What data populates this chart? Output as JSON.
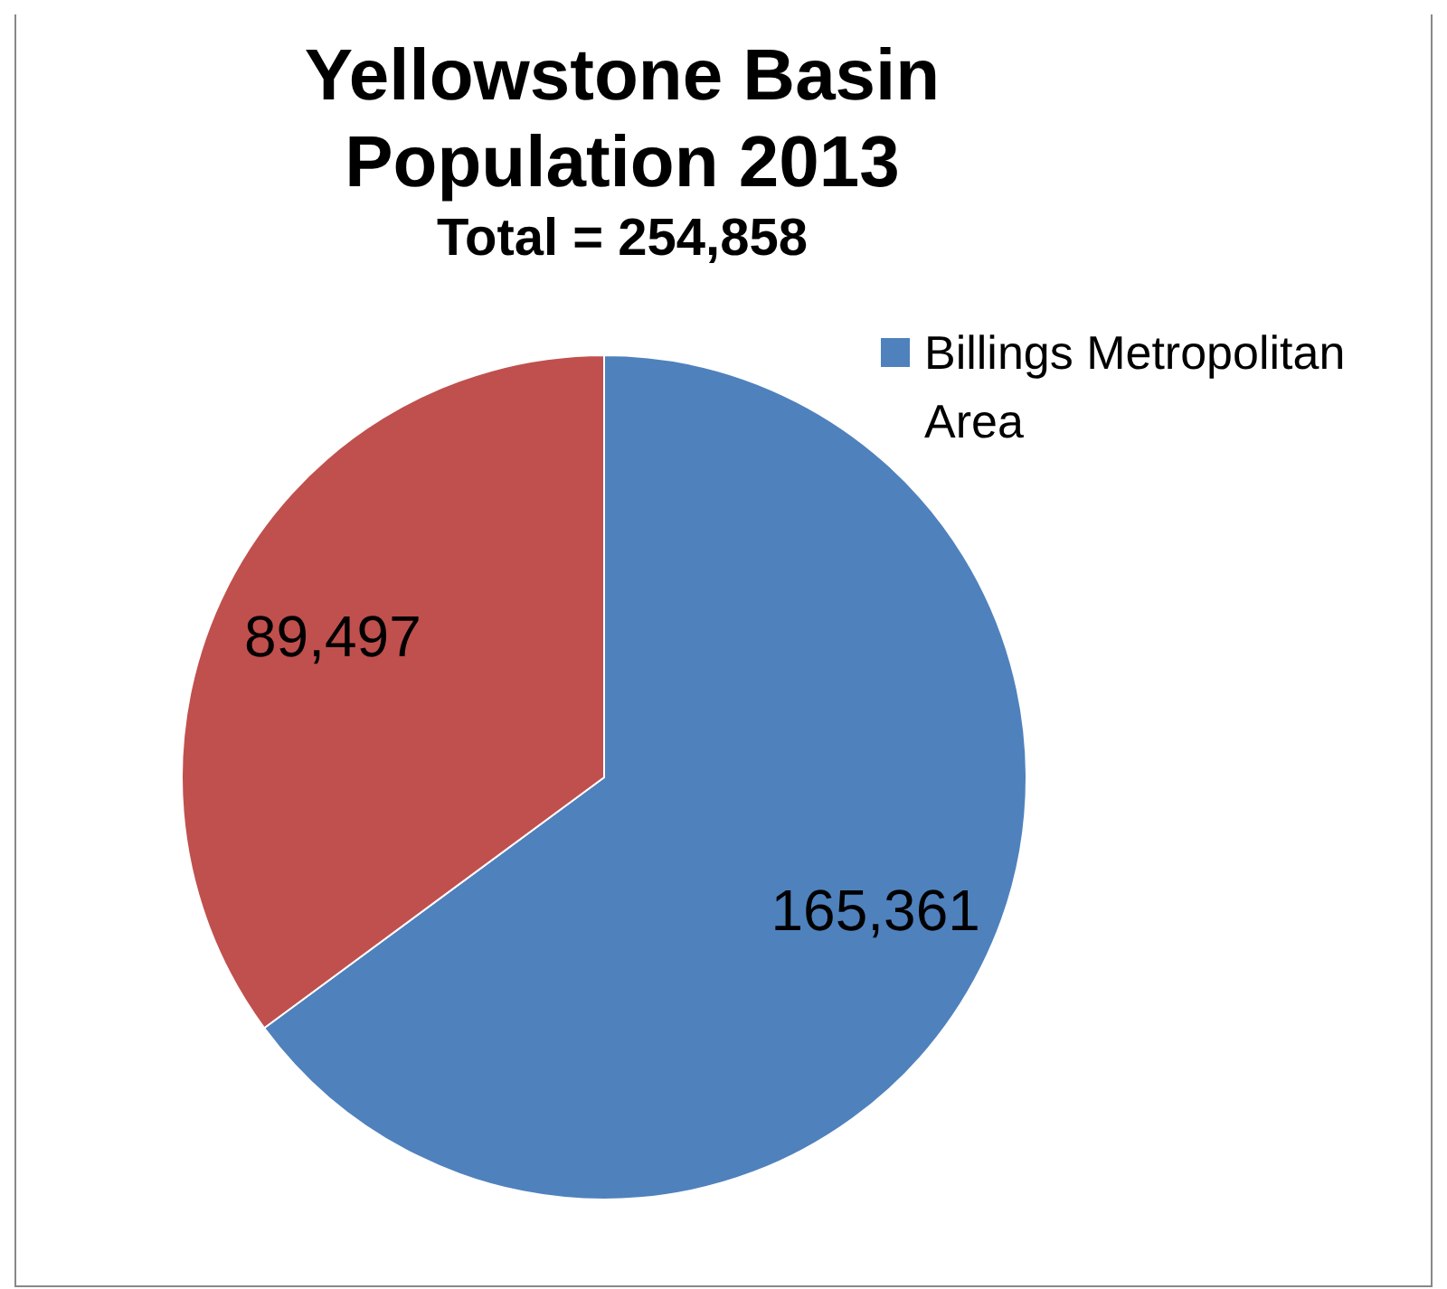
{
  "chart_data": {
    "type": "pie",
    "title": "Yellowstone Basin Population 2013",
    "subtitle": "Total = 254,858",
    "categories": [
      "Billings Metropolitan Area",
      null
    ],
    "values": [
      165361,
      89497
    ],
    "colors": [
      "#4f81bd",
      "#c0504d"
    ],
    "value_labels": [
      "165,361",
      "89,497"
    ],
    "legend": "top right"
  }
}
